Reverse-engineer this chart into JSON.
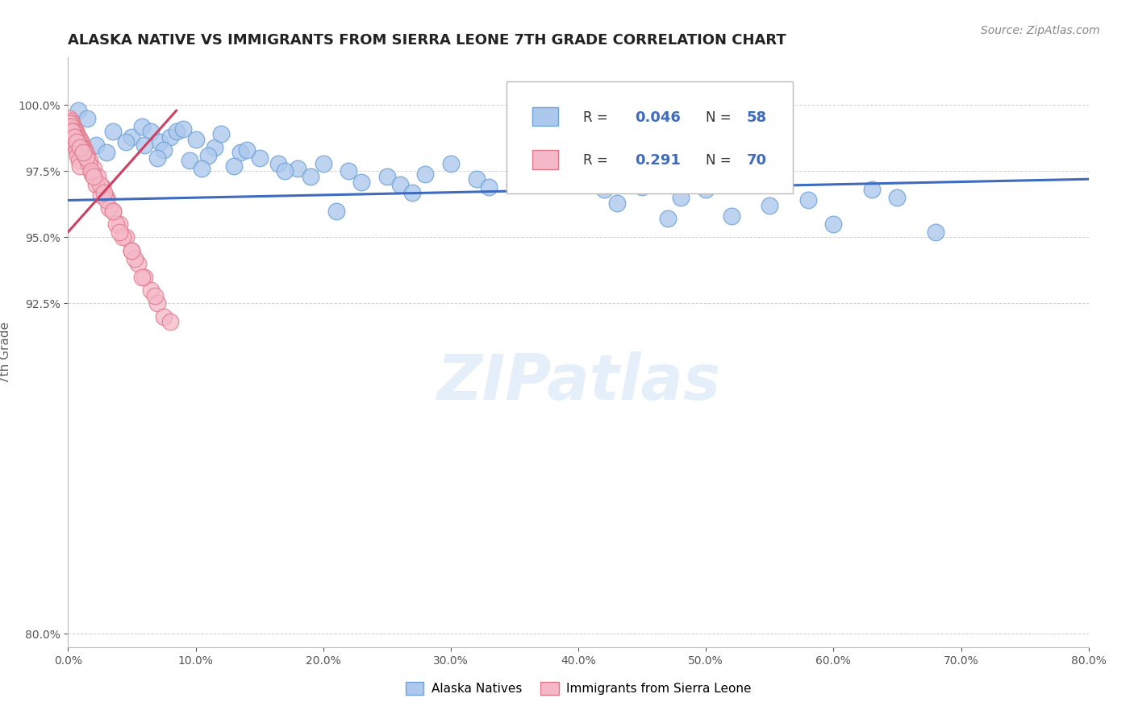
{
  "title": "ALASKA NATIVE VS IMMIGRANTS FROM SIERRA LEONE 7TH GRADE CORRELATION CHART",
  "source": "Source: ZipAtlas.com",
  "ylabel": "7th Grade",
  "xmin": 0.0,
  "xmax": 80.0,
  "ymin": 79.5,
  "ymax": 101.8,
  "yticks": [
    80.0,
    92.5,
    95.0,
    97.5,
    100.0
  ],
  "ytick_labels": [
    "80.0%",
    "92.5%",
    "95.0%",
    "97.5%",
    "100.0%"
  ],
  "xticks": [
    0,
    10,
    20,
    30,
    40,
    50,
    60,
    70,
    80
  ],
  "blue_color": "#adc8ed",
  "blue_edge": "#6ea3d8",
  "blue_trend": "#3f6bbf",
  "pink_color": "#f5b8c8",
  "pink_edge": "#e0788a",
  "pink_trend": "#d04060",
  "watermark": "ZIPatlas",
  "blue_scatter_x": [
    0.8,
    1.5,
    2.2,
    3.5,
    5.0,
    5.8,
    6.5,
    7.2,
    8.0,
    8.5,
    9.0,
    10.0,
    11.5,
    12.0,
    13.5,
    15.0,
    16.5,
    18.0,
    20.0,
    22.0,
    25.0,
    28.0,
    30.0,
    32.0,
    35.0,
    38.0,
    40.0,
    42.0,
    45.0,
    48.0,
    50.0,
    52.0,
    55.0,
    58.0,
    60.0,
    63.0,
    65.0,
    68.0,
    3.0,
    6.0,
    7.5,
    9.5,
    11.0,
    13.0,
    17.0,
    19.0,
    23.0,
    26.0,
    4.5,
    7.0,
    10.5,
    14.0,
    21.0,
    27.0,
    33.0,
    36.0,
    43.0,
    47.0
  ],
  "blue_scatter_y": [
    99.8,
    99.5,
    98.5,
    99.0,
    98.8,
    99.2,
    99.0,
    98.6,
    98.8,
    99.0,
    99.1,
    98.7,
    98.4,
    98.9,
    98.2,
    98.0,
    97.8,
    97.6,
    97.8,
    97.5,
    97.3,
    97.4,
    97.8,
    97.2,
    97.0,
    97.2,
    97.1,
    96.8,
    96.9,
    96.5,
    96.8,
    95.8,
    96.2,
    96.4,
    95.5,
    96.8,
    96.5,
    95.2,
    98.2,
    98.5,
    98.3,
    97.9,
    98.1,
    97.7,
    97.5,
    97.3,
    97.1,
    97.0,
    98.6,
    98.0,
    97.6,
    98.3,
    96.0,
    96.7,
    96.9,
    97.4,
    96.3,
    95.7
  ],
  "pink_scatter_x": [
    0.1,
    0.2,
    0.3,
    0.4,
    0.5,
    0.6,
    0.7,
    0.8,
    0.9,
    1.0,
    1.1,
    1.2,
    1.3,
    1.5,
    1.7,
    2.0,
    2.3,
    2.7,
    3.0,
    3.5,
    4.0,
    4.5,
    5.0,
    5.5,
    6.0,
    6.5,
    7.0,
    7.5,
    8.0,
    0.15,
    0.25,
    0.35,
    0.45,
    0.55,
    0.65,
    0.75,
    0.85,
    0.95,
    1.1,
    1.3,
    1.6,
    1.9,
    2.2,
    2.6,
    3.2,
    3.8,
    4.3,
    5.2,
    0.2,
    0.4,
    0.6,
    0.8,
    1.0,
    1.4,
    1.8,
    2.5,
    3.0,
    4.0,
    0.3,
    0.5,
    0.7,
    0.9,
    1.2,
    2.0,
    2.8,
    3.5,
    5.0,
    5.8,
    6.8
  ],
  "pink_scatter_y": [
    99.5,
    99.4,
    99.3,
    99.2,
    99.1,
    99.0,
    98.9,
    98.8,
    98.7,
    98.6,
    98.5,
    98.4,
    98.3,
    98.1,
    97.9,
    97.6,
    97.3,
    96.9,
    96.5,
    96.0,
    95.5,
    95.0,
    94.5,
    94.0,
    93.5,
    93.0,
    92.5,
    92.0,
    91.8,
    99.3,
    99.1,
    98.9,
    98.7,
    98.5,
    98.3,
    98.1,
    97.9,
    97.7,
    98.4,
    98.2,
    97.8,
    97.4,
    97.0,
    96.6,
    96.1,
    95.5,
    95.0,
    94.2,
    99.2,
    99.0,
    98.8,
    98.6,
    98.4,
    98.0,
    97.5,
    97.0,
    96.4,
    95.2,
    99.0,
    98.8,
    98.6,
    98.4,
    98.2,
    97.3,
    96.7,
    96.0,
    94.5,
    93.5,
    92.8
  ],
  "blue_trend_x": [
    0.0,
    80.0
  ],
  "blue_trend_y": [
    96.4,
    97.2
  ],
  "pink_trend_x": [
    0.0,
    8.5
  ],
  "pink_trend_y": [
    95.2,
    99.8
  ]
}
